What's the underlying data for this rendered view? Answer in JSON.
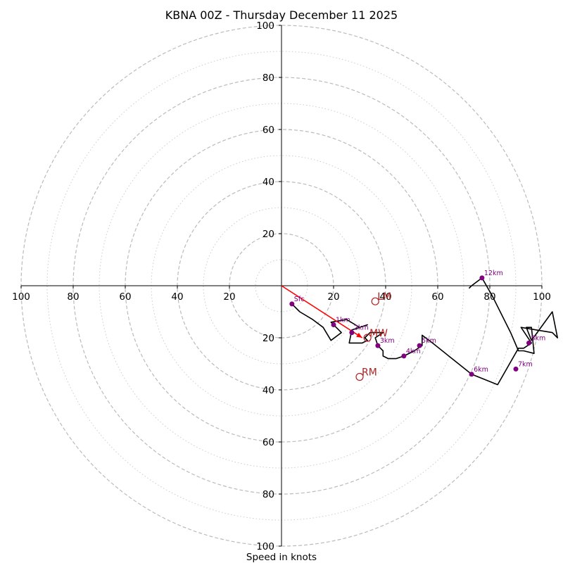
{
  "colors": {
    "ring_major": "#bbbbbb",
    "ring_minor": "#cccccc",
    "axis": "#000000",
    "hodo_line": "#000000",
    "marker": "#800080",
    "marker_label": "#800080",
    "shear": "#ff0000",
    "motion": "#b22222"
  },
  "chart_data": {
    "type": "scatter",
    "subtype": "hodograph",
    "title": "KBNA 00Z - Thursday December 11 2025",
    "xlabel": "Speed in knots",
    "ylabel": "",
    "xlim": [
      -100,
      100
    ],
    "ylim": [
      -100,
      100
    ],
    "rings_major": [
      20,
      40,
      60,
      80,
      100
    ],
    "rings_minor": [
      10,
      30,
      50,
      70,
      90
    ],
    "tick_values": [
      20,
      40,
      60,
      80,
      100
    ],
    "tick_labels": [
      "20",
      "40",
      "60",
      "80",
      "100"
    ],
    "hodograph_line": [
      [
        4,
        -7
      ],
      [
        7,
        -10
      ],
      [
        12,
        -13
      ],
      [
        16,
        -16
      ],
      [
        19,
        -21
      ],
      [
        23,
        -18
      ],
      [
        19,
        -14
      ],
      [
        25,
        -13
      ],
      [
        30,
        -16
      ],
      [
        33,
        -15
      ],
      [
        27,
        -17
      ],
      [
        26,
        -22
      ],
      [
        31,
        -22
      ],
      [
        33,
        -21
      ],
      [
        32,
        -20
      ],
      [
        34,
        -18
      ],
      [
        39,
        -18
      ],
      [
        36,
        -20
      ],
      [
        37,
        -23
      ],
      [
        39,
        -25
      ],
      [
        39,
        -27
      ],
      [
        41,
        -28
      ],
      [
        44,
        -28
      ],
      [
        47,
        -27
      ],
      [
        51,
        -25
      ],
      [
        54,
        -23
      ],
      [
        54,
        -19
      ],
      [
        58,
        -22
      ],
      [
        73,
        -34
      ],
      [
        83,
        -38
      ],
      [
        91,
        -24
      ],
      [
        93,
        -24
      ],
      [
        96,
        -22
      ],
      [
        92,
        -16
      ],
      [
        98,
        -17
      ],
      [
        104,
        -18
      ],
      [
        106,
        -20
      ],
      [
        104,
        -10
      ],
      [
        96,
        -21
      ],
      [
        94,
        -16
      ],
      [
        96,
        -16
      ],
      [
        97,
        -26
      ],
      [
        93,
        -25
      ],
      [
        91,
        -25
      ],
      [
        88,
        -18
      ],
      [
        81,
        -4
      ],
      [
        77,
        3
      ],
      [
        73,
        0
      ],
      [
        72,
        -1
      ]
    ],
    "height_markers": [
      {
        "label": "Sfc",
        "u": 4,
        "v": -7
      },
      {
        "label": "1km",
        "u": 20,
        "v": -15
      },
      {
        "label": "2km",
        "u": 27,
        "v": -18
      },
      {
        "label": "3km",
        "u": 37,
        "v": -23
      },
      {
        "label": "4km",
        "u": 47,
        "v": -27
      },
      {
        "label": "5km",
        "u": 53,
        "v": -23
      },
      {
        "label": "6km",
        "u": 73,
        "v": -34
      },
      {
        "label": "7km",
        "u": 90,
        "v": -32
      },
      {
        "label": "8km",
        "u": 95,
        "v": -22
      },
      {
        "label": "12km",
        "u": 77,
        "v": 3
      }
    ],
    "storm_motions": [
      {
        "label": "LM",
        "u": 36,
        "v": -6
      },
      {
        "label": "MW",
        "u": 33,
        "v": -20
      },
      {
        "label": "RM",
        "u": 30,
        "v": -35
      }
    ],
    "shear_vector": {
      "from": [
        0,
        0
      ],
      "to": [
        31,
        -20
      ]
    }
  }
}
